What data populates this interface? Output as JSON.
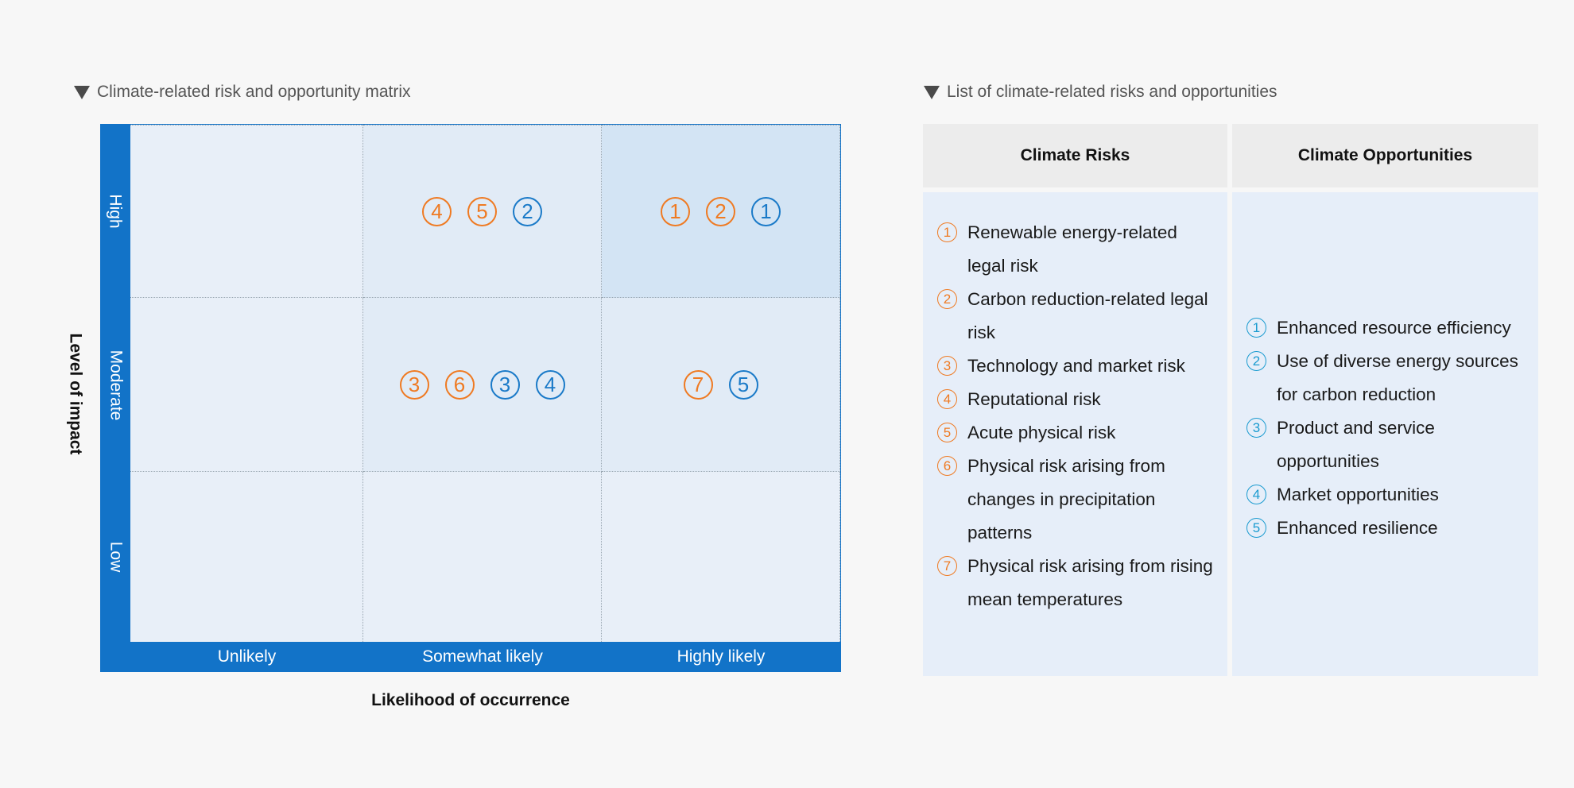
{
  "matrix": {
    "title": "Climate-related risk and opportunity matrix",
    "y_axis_label": "Level of impact",
    "x_axis_label": "Likelihood of occurrence",
    "y_ticks": [
      "High",
      "Moderate",
      "Low"
    ],
    "x_ticks": [
      "Unlikely",
      "Somewhat likely",
      "Highly likely"
    ],
    "colors": {
      "frame": "#1273c8",
      "risk": "#ef7a22",
      "opportunity": "#1a7ac8",
      "cell_low": "#e8eff8",
      "cell_medium": "#e1ebf6",
      "cell_high": "#d3e4f4"
    },
    "cells": {
      "high_somewhat": [
        {
          "label": "4",
          "kind": "risk"
        },
        {
          "label": "5",
          "kind": "risk"
        },
        {
          "label": "2",
          "kind": "opportunity"
        }
      ],
      "high_highly": [
        {
          "label": "1",
          "kind": "risk"
        },
        {
          "label": "2",
          "kind": "risk"
        },
        {
          "label": "1",
          "kind": "opportunity"
        }
      ],
      "moderate_somewhat": [
        {
          "label": "3",
          "kind": "risk"
        },
        {
          "label": "6",
          "kind": "risk"
        },
        {
          "label": "3",
          "kind": "opportunity"
        },
        {
          "label": "4",
          "kind": "opportunity"
        }
      ],
      "moderate_highly": [
        {
          "label": "7",
          "kind": "risk"
        },
        {
          "label": "5",
          "kind": "opportunity"
        }
      ]
    }
  },
  "list": {
    "title": "List of climate-related risks and opportunities",
    "risks_header": "Climate Risks",
    "opportunities_header": "Climate Opportunities",
    "risks": [
      {
        "num": "1",
        "text": "Renewable energy-related legal risk"
      },
      {
        "num": "2",
        "text": "Carbon reduction-related legal risk"
      },
      {
        "num": "3",
        "text": "Technology and market risk"
      },
      {
        "num": "4",
        "text": "Reputational risk"
      },
      {
        "num": "5",
        "text": "Acute physical risk"
      },
      {
        "num": "6",
        "text": "Physical risk arising from changes in precipitation patterns"
      },
      {
        "num": "7",
        "text": "Physical risk arising from rising mean temperatures"
      }
    ],
    "opportunities": [
      {
        "num": "1",
        "text": "Enhanced resource efficiency"
      },
      {
        "num": "2",
        "text": "Use of diverse energy sources for carbon reduction"
      },
      {
        "num": "3",
        "text": "Product and service opportunities"
      },
      {
        "num": "4",
        "text": "Market opportunities"
      },
      {
        "num": "5",
        "text": "Enhanced resilience"
      }
    ]
  }
}
